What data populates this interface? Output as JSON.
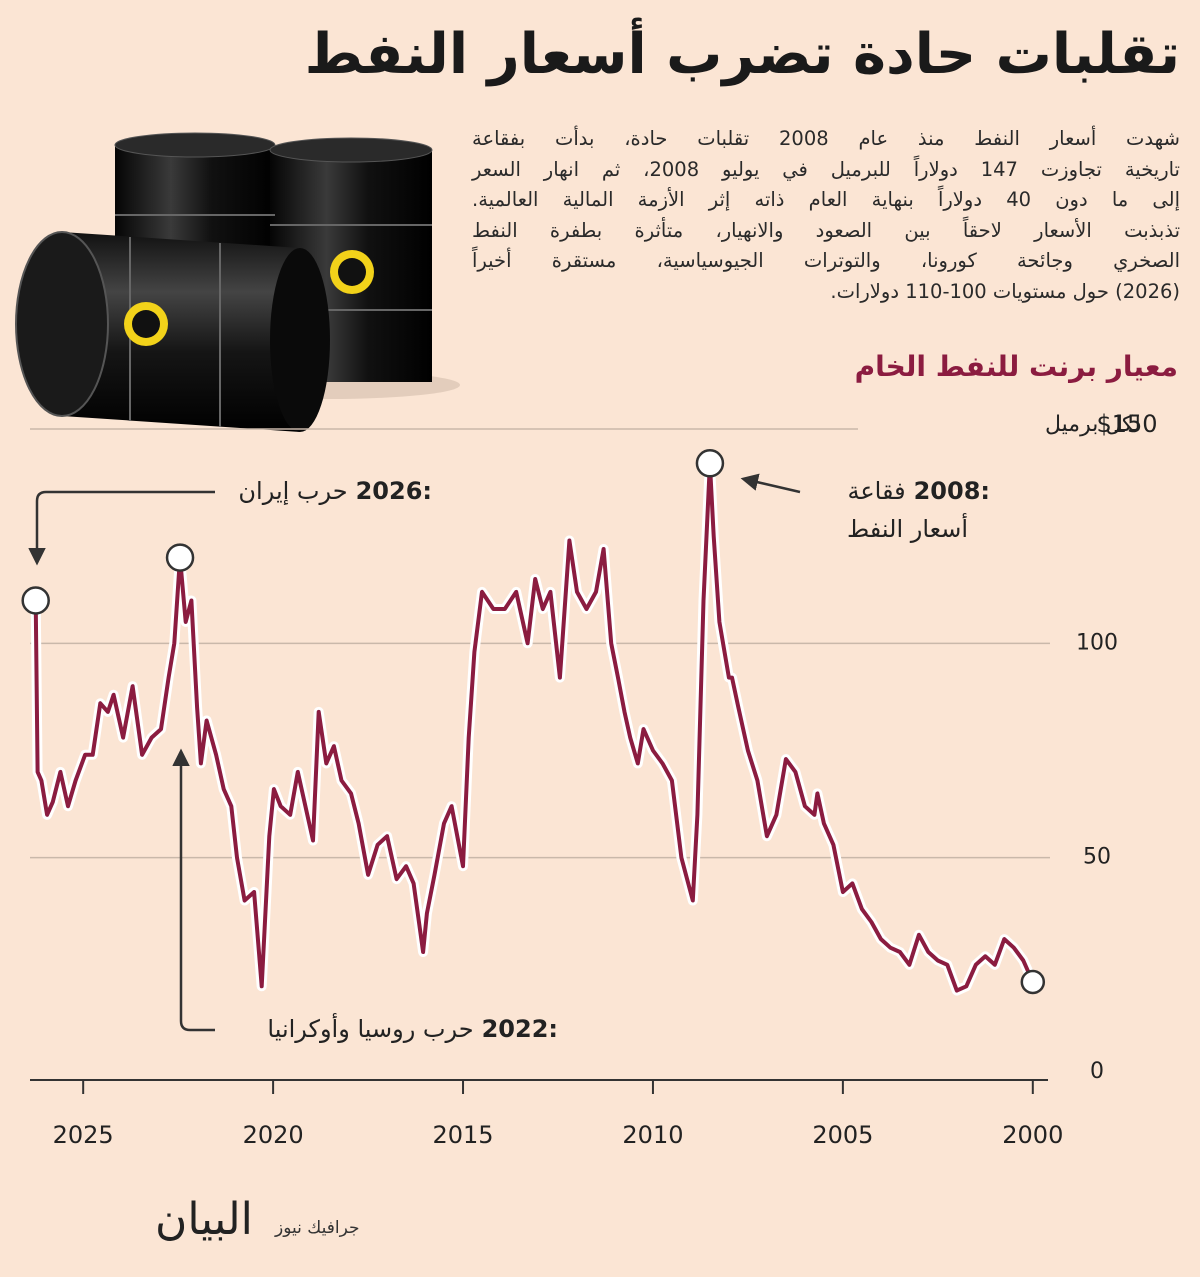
{
  "chart_data": {
    "type": "line",
    "title": "تقلبات حادة تضرب أسعار النفط",
    "description": [
      "شهدت أسعار النفط منذ عام 2008 تقلبات حادة، بدأت بفقاعة",
      "تاريخية تجاوزت 147 دولاراً للبرميل في يوليو 2008، ثم انهار السعر",
      "إلى ما دون 40 دولاراً بنهاية العام ذاته إثر الأزمة المالية العالمية.",
      "تذبذبت الأسعار لاحقاً بين الصعود والانهيار، متأثرة بطفرة النفط",
      "الصخري وجائحة كورونا، والتوترات الجيوسياسية، مستقرة أخيراً",
      "(2026) حول مستويات 100-110 دولارات."
    ],
    "subtitle": "معيار برنت للنفط الخام",
    "y_label": "لكل برميل",
    "color": "#8b1c40",
    "x_reversed": true,
    "grid": true,
    "xlim": [
      1999.6,
      2026.4
    ],
    "xticks": [
      2000,
      2005,
      2010,
      2015,
      2020,
      2025
    ],
    "ylim": [
      0,
      150
    ],
    "yticks": [
      0,
      50,
      100,
      {
        "value": 150,
        "label": "$150"
      }
    ],
    "x": [
      2000.0,
      2000.25,
      2000.5,
      2000.75,
      2001.0,
      2001.25,
      2001.5,
      2001.75,
      2002.0,
      2002.25,
      2002.5,
      2002.75,
      2003.0,
      2003.25,
      2003.5,
      2003.75,
      2004.0,
      2004.25,
      2004.5,
      2004.75,
      2005.0,
      2005.25,
      2005.5,
      2005.67,
      2005.75,
      2006.0,
      2006.25,
      2006.5,
      2006.75,
      2007.0,
      2007.25,
      2007.5,
      2007.75,
      2007.92,
      2008.0,
      2008.25,
      2008.4,
      2008.5,
      2008.67,
      2008.83,
      2008.95,
      2009.1,
      2009.25,
      2009.5,
      2009.75,
      2010.0,
      2010.25,
      2010.4,
      2010.6,
      2010.75,
      2010.92,
      2011.1,
      2011.3,
      2011.5,
      2011.75,
      2012.0,
      2012.2,
      2012.45,
      2012.7,
      2012.9,
      2013.1,
      2013.3,
      2013.6,
      2013.9,
      2014.2,
      2014.5,
      2014.7,
      2014.85,
      2015.0,
      2015.3,
      2015.5,
      2015.75,
      2015.95,
      2016.05,
      2016.3,
      2016.5,
      2016.75,
      2017.0,
      2017.25,
      2017.5,
      2017.75,
      2017.95,
      2018.2,
      2018.4,
      2018.6,
      2018.8,
      2018.95,
      2019.15,
      2019.35,
      2019.55,
      2019.8,
      2019.98,
      2020.1,
      2020.3,
      2020.5,
      2020.75,
      2020.95,
      2021.1,
      2021.3,
      2021.5,
      2021.75,
      2021.9,
      2022.0,
      2022.15,
      2022.3,
      2022.45,
      2022.6,
      2022.75,
      2022.95,
      2023.2,
      2023.45,
      2023.7,
      2023.95,
      2024.2,
      2024.35,
      2024.55,
      2024.75,
      2024.95,
      2025.2,
      2025.4,
      2025.6,
      2025.8,
      2025.95,
      2026.1,
      2026.2,
      2026.25
    ],
    "values": [
      21,
      26,
      29,
      31,
      25,
      27,
      25,
      20,
      19,
      25,
      26,
      28,
      32,
      25,
      28,
      29,
      31,
      35,
      38,
      44,
      42,
      53,
      58,
      65,
      60,
      62,
      70,
      73,
      60,
      55,
      68,
      75,
      85,
      92,
      92,
      105,
      125,
      142,
      110,
      60,
      40,
      45,
      50,
      68,
      72,
      75,
      80,
      72,
      78,
      84,
      92,
      100,
      122,
      112,
      108,
      112,
      124,
      92,
      112,
      108,
      115,
      100,
      112,
      108,
      108,
      112,
      98,
      78,
      48,
      62,
      58,
      46,
      37,
      28,
      44,
      48,
      45,
      55,
      53,
      46,
      58,
      65,
      68,
      76,
      72,
      84,
      54,
      62,
      70,
      60,
      62,
      66,
      55,
      20,
      42,
      40,
      50,
      62,
      66,
      74,
      82,
      72,
      85,
      110,
      105,
      120,
      100,
      92,
      80,
      78,
      74,
      90,
      78,
      88,
      84,
      86,
      74,
      74,
      68,
      62,
      70,
      63,
      60,
      68,
      70,
      110
    ],
    "annotations": [
      {
        "label": "2008:",
        "text": [
          "فقاعة",
          "أسعار النفط"
        ],
        "x": 2008.5,
        "y": 142
      },
      {
        "label": "2026:",
        "text": [
          "حرب إيران"
        ],
        "x": 2026.25,
        "y": 110
      },
      {
        "label": "2022:",
        "text": [
          "حرب روسيا وأوكرانيا"
        ],
        "x": 2022.45,
        "y": 120
      }
    ],
    "end_point": {
      "x": 2000.0,
      "y": 21
    },
    "source": "جرافيك نيوز",
    "brand": "البيان"
  }
}
